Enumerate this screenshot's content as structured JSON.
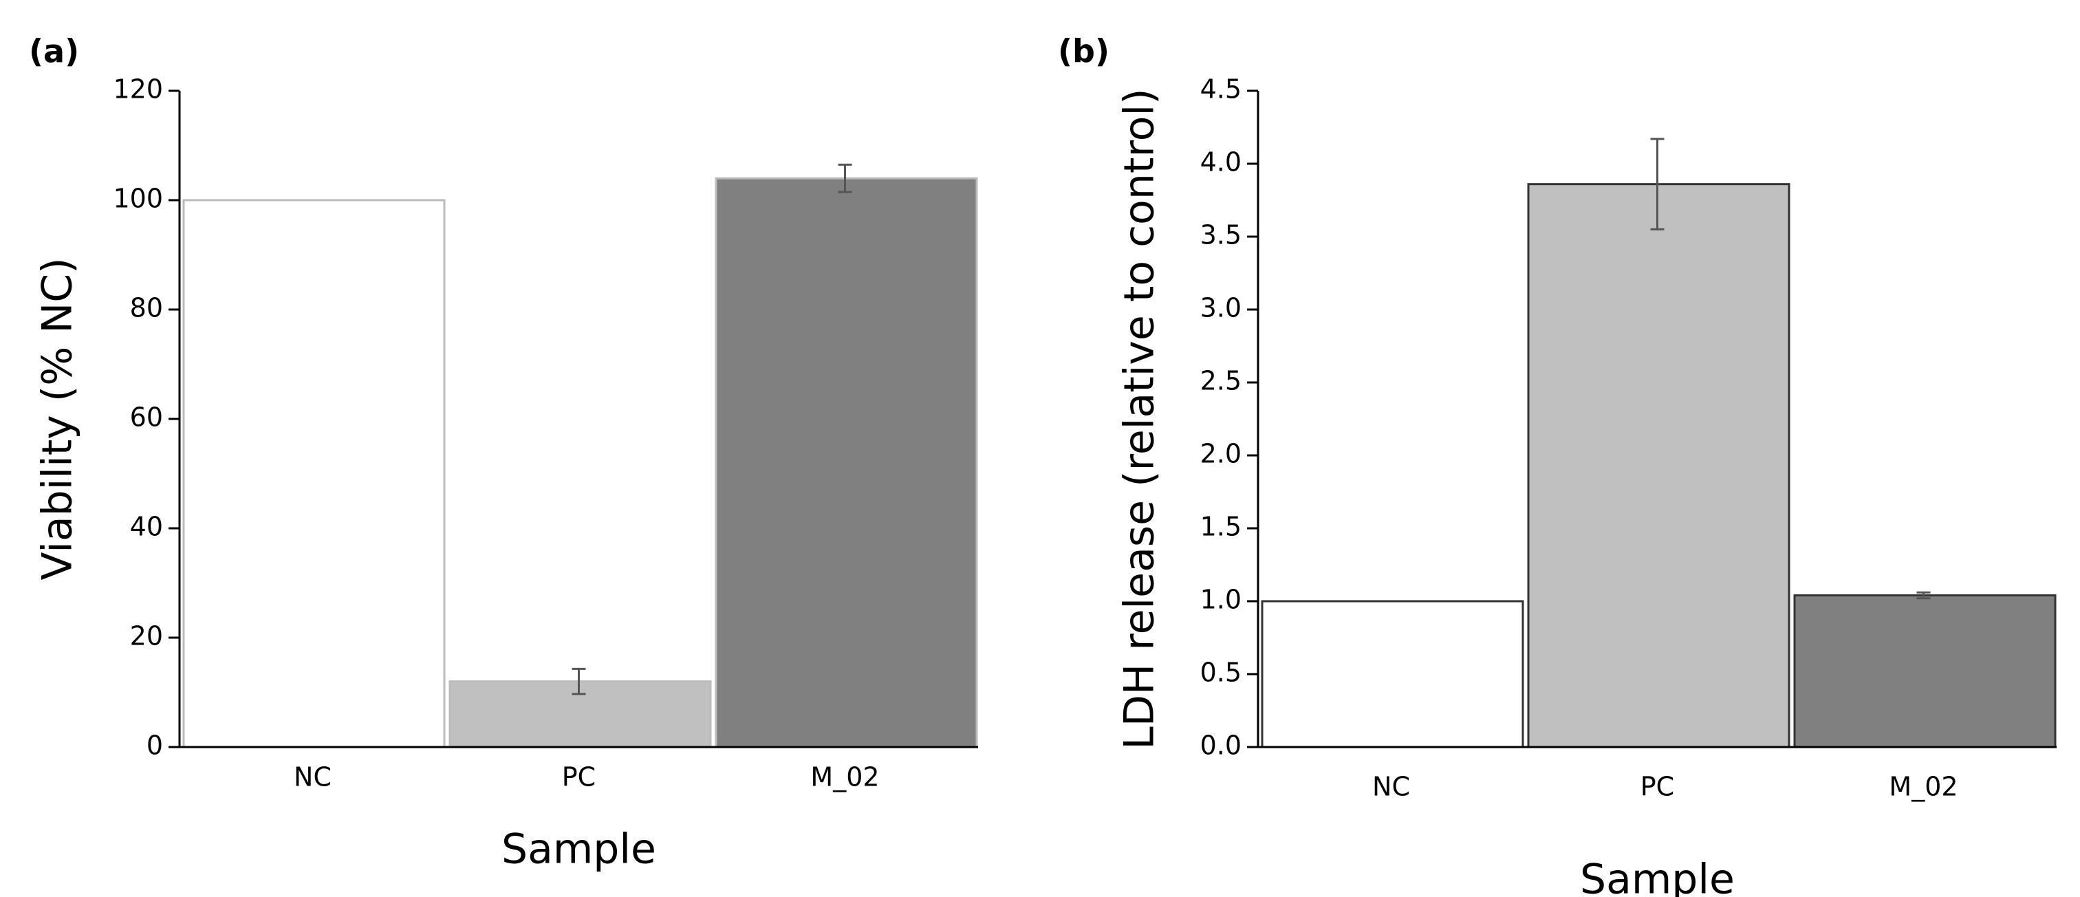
{
  "chart_data": [
    {
      "type": "bar",
      "panel_label": "(a)",
      "ylabel": "Viability (% NC)",
      "xlabel": "Sample",
      "categories": [
        "NC",
        "PC",
        "M_02"
      ],
      "values": [
        100,
        12,
        104
      ],
      "errors": [
        null,
        2.3,
        2.5
      ],
      "colors": [
        "#ffffff",
        "#c0c0c0",
        "#808080"
      ],
      "edgecolor": "#bbbbbb",
      "ylim": [
        0,
        120
      ],
      "yticks": [
        0,
        20,
        40,
        60,
        80,
        100,
        120
      ]
    },
    {
      "type": "bar",
      "panel_label": "(b)",
      "ylabel": "LDH release (relative to control)",
      "xlabel": "Sample",
      "categories": [
        "NC",
        "PC",
        "M_02"
      ],
      "values": [
        1.0,
        3.86,
        1.04
      ],
      "errors": [
        null,
        0.31,
        0.02
      ],
      "colors": [
        "#ffffff",
        "#c0c0c0",
        "#808080"
      ],
      "edgecolor": "#333333",
      "ylim": [
        0,
        4.5
      ],
      "yticks": [
        {
          "value": 0,
          "label": "0.0"
        },
        0.5,
        {
          "value": 1,
          "label": "1.0"
        },
        1.5,
        {
          "value": 2,
          "label": "2.0"
        },
        2.5,
        {
          "value": 3,
          "label": "3.0"
        },
        3.5,
        {
          "value": 4,
          "label": "4.0"
        },
        4.5
      ]
    }
  ]
}
